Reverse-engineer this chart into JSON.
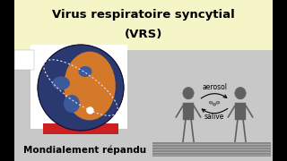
{
  "title_line1": "Virus respiratoire syncytial",
  "title_line2": "(VRS)",
  "title_bg": "#f5f5c8",
  "slide_bg": "#1a1a1a",
  "content_bg": "#c8c8c8",
  "bottom_text": "Mondialement répandu",
  "aerosol_label": "aerosol",
  "salive_label": "salive",
  "title_fontsize": 9.5,
  "body_fontsize": 7.5,
  "label_fontsize": 5.5,
  "globe_blue": "#3a5a9a",
  "globe_orange": "#d4782a",
  "globe_dark_blue": "#2a3a70",
  "orbit_color": "#e0e0ff",
  "red_base": "#cc2020",
  "black_bar_width": 16
}
